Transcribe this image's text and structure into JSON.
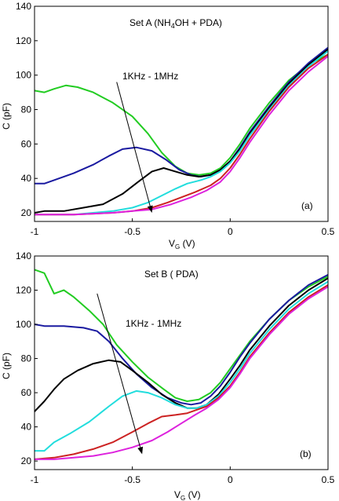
{
  "chart_data": [
    {
      "type": "line",
      "title": "Set A (NH4OH + PDA)",
      "title_parts": {
        "pre": "Set A (NH",
        "sub": "4",
        "post": "OH + PDA)"
      },
      "panel_label": "(a)",
      "annotation": "1KHz - 1MHz",
      "arrow": {
        "from": [
          -0.58,
          96
        ],
        "to": [
          -0.4,
          20
        ]
      },
      "xlabel": {
        "main": "V",
        "sub": "G",
        "unit": " (V)"
      },
      "ylabel": "C (pF)",
      "xlim": [
        -1,
        0.5
      ],
      "ylim": [
        15,
        140
      ],
      "xticks": [
        -1,
        -0.5,
        0,
        0.5
      ],
      "xtick_labels": [
        "-1",
        "-0.5",
        "0",
        "0.5"
      ],
      "yticks": [
        20,
        40,
        60,
        80,
        100,
        120,
        140
      ],
      "ytick_labels": [
        "20",
        "40",
        "60",
        "80",
        "100",
        "120",
        "140"
      ],
      "grid": false,
      "series": [
        {
          "color": "#22cc22",
          "points": [
            [
              -1,
              91
            ],
            [
              -0.95,
              90
            ],
            [
              -0.9,
              92
            ],
            [
              -0.84,
              94
            ],
            [
              -0.78,
              93
            ],
            [
              -0.7,
              90
            ],
            [
              -0.6,
              84
            ],
            [
              -0.5,
              76
            ],
            [
              -0.42,
              66
            ],
            [
              -0.35,
              55
            ],
            [
              -0.28,
              47
            ],
            [
              -0.22,
              43
            ],
            [
              -0.16,
              42
            ],
            [
              -0.1,
              43
            ],
            [
              -0.05,
              46
            ],
            [
              0,
              52
            ],
            [
              0.05,
              60
            ],
            [
              0.1,
              69
            ],
            [
              0.2,
              84
            ],
            [
              0.3,
              97
            ],
            [
              0.4,
              106
            ],
            [
              0.5,
              112
            ]
          ]
        },
        {
          "color": "#1a1aa0",
          "points": [
            [
              -1,
              37
            ],
            [
              -0.95,
              37
            ],
            [
              -0.9,
              39
            ],
            [
              -0.8,
              43
            ],
            [
              -0.7,
              48
            ],
            [
              -0.62,
              53
            ],
            [
              -0.55,
              57
            ],
            [
              -0.48,
              58
            ],
            [
              -0.4,
              56
            ],
            [
              -0.33,
              51
            ],
            [
              -0.26,
              45
            ],
            [
              -0.2,
              42
            ],
            [
              -0.15,
              41
            ],
            [
              -0.1,
              42
            ],
            [
              -0.05,
              45
            ],
            [
              0,
              50
            ],
            [
              0.05,
              58
            ],
            [
              0.1,
              67
            ],
            [
              0.2,
              82
            ],
            [
              0.3,
              96
            ],
            [
              0.4,
              107
            ],
            [
              0.5,
              116
            ]
          ]
        },
        {
          "color": "#000000",
          "points": [
            [
              -1,
              20
            ],
            [
              -0.95,
              21
            ],
            [
              -0.85,
              21
            ],
            [
              -0.75,
              23
            ],
            [
              -0.65,
              25
            ],
            [
              -0.55,
              31
            ],
            [
              -0.47,
              38
            ],
            [
              -0.4,
              44
            ],
            [
              -0.34,
              46
            ],
            [
              -0.28,
              44
            ],
            [
              -0.22,
              42
            ],
            [
              -0.16,
              41
            ],
            [
              -0.1,
              42
            ],
            [
              -0.05,
              45
            ],
            [
              0,
              50
            ],
            [
              0.05,
              57
            ],
            [
              0.1,
              66
            ],
            [
              0.2,
              81
            ],
            [
              0.3,
              95
            ],
            [
              0.4,
              106
            ],
            [
              0.5,
              115
            ]
          ]
        },
        {
          "color": "#22dddd",
          "points": [
            [
              -1,
              19
            ],
            [
              -0.9,
              19
            ],
            [
              -0.8,
              19
            ],
            [
              -0.7,
              20
            ],
            [
              -0.6,
              21
            ],
            [
              -0.5,
              23
            ],
            [
              -0.42,
              26
            ],
            [
              -0.35,
              30
            ],
            [
              -0.28,
              34
            ],
            [
              -0.22,
              37
            ],
            [
              -0.15,
              39
            ],
            [
              -0.1,
              41
            ],
            [
              -0.05,
              44
            ],
            [
              0,
              49
            ],
            [
              0.05,
              56
            ],
            [
              0.1,
              65
            ],
            [
              0.2,
              80
            ],
            [
              0.3,
              94
            ],
            [
              0.4,
              105
            ],
            [
              0.5,
              114
            ]
          ]
        },
        {
          "color": "#cc2222",
          "points": [
            [
              -1,
              19
            ],
            [
              -0.8,
              19
            ],
            [
              -0.6,
              20
            ],
            [
              -0.5,
              21
            ],
            [
              -0.4,
              23
            ],
            [
              -0.32,
              26
            ],
            [
              -0.25,
              29
            ],
            [
              -0.18,
              32
            ],
            [
              -0.1,
              36
            ],
            [
              -0.05,
              40
            ],
            [
              0,
              46
            ],
            [
              0.05,
              54
            ],
            [
              0.1,
              63
            ],
            [
              0.2,
              79
            ],
            [
              0.3,
              93
            ],
            [
              0.4,
              104
            ],
            [
              0.5,
              112
            ]
          ]
        },
        {
          "color": "#dd22dd",
          "points": [
            [
              -1,
              19
            ],
            [
              -0.8,
              19
            ],
            [
              -0.6,
              20
            ],
            [
              -0.5,
              21
            ],
            [
              -0.4,
              22
            ],
            [
              -0.3,
              25
            ],
            [
              -0.2,
              29
            ],
            [
              -0.12,
              33
            ],
            [
              -0.05,
              38
            ],
            [
              0,
              44
            ],
            [
              0.05,
              52
            ],
            [
              0.1,
              61
            ],
            [
              0.2,
              77
            ],
            [
              0.3,
              91
            ],
            [
              0.4,
              102
            ],
            [
              0.5,
              111
            ]
          ]
        }
      ]
    },
    {
      "type": "line",
      "title": "Set B  ( PDA)",
      "panel_label": "(b)",
      "annotation": "1KHz - 1MHz",
      "arrow": {
        "from": [
          -0.68,
          118
        ],
        "to": [
          -0.45,
          24
        ]
      },
      "xlabel": {
        "main": "V",
        "sub": "G",
        "unit": " (V)"
      },
      "ylabel": "C (pF)",
      "xlim": [
        -1,
        0.5
      ],
      "ylim": [
        15,
        140
      ],
      "xticks": [
        -1,
        -0.5,
        0,
        0.5
      ],
      "xtick_labels": [
        "-1",
        "-0.5",
        "0",
        "0.5"
      ],
      "yticks": [
        20,
        40,
        60,
        80,
        100,
        120,
        140
      ],
      "ytick_labels": [
        "20",
        "40",
        "60",
        "80",
        "100",
        "120",
        "140"
      ],
      "grid": false,
      "series": [
        {
          "color": "#22cc22",
          "points": [
            [
              -1,
              132
            ],
            [
              -0.95,
              130
            ],
            [
              -0.9,
              118
            ],
            [
              -0.85,
              120
            ],
            [
              -0.8,
              116
            ],
            [
              -0.72,
              108
            ],
            [
              -0.65,
              100
            ],
            [
              -0.58,
              88
            ],
            [
              -0.5,
              78
            ],
            [
              -0.42,
              69
            ],
            [
              -0.34,
              62
            ],
            [
              -0.28,
              57
            ],
            [
              -0.22,
              55
            ],
            [
              -0.16,
              56
            ],
            [
              -0.1,
              60
            ],
            [
              -0.05,
              66
            ],
            [
              0,
              74
            ],
            [
              0.05,
              82
            ],
            [
              0.1,
              90
            ],
            [
              0.2,
              103
            ],
            [
              0.3,
              114
            ],
            [
              0.4,
              122
            ],
            [
              0.5,
              128
            ]
          ]
        },
        {
          "color": "#1a1aa0",
          "points": [
            [
              -1,
              100
            ],
            [
              -0.95,
              99
            ],
            [
              -0.85,
              99
            ],
            [
              -0.75,
              98
            ],
            [
              -0.68,
              96
            ],
            [
              -0.62,
              90
            ],
            [
              -0.55,
              80
            ],
            [
              -0.48,
              71
            ],
            [
              -0.4,
              63
            ],
            [
              -0.32,
              57
            ],
            [
              -0.25,
              54
            ],
            [
              -0.2,
              53
            ],
            [
              -0.15,
              54
            ],
            [
              -0.1,
              58
            ],
            [
              -0.05,
              64
            ],
            [
              0,
              72
            ],
            [
              0.05,
              81
            ],
            [
              0.1,
              89
            ],
            [
              0.2,
              103
            ],
            [
              0.3,
              114
            ],
            [
              0.4,
              123
            ],
            [
              0.5,
              129
            ]
          ]
        },
        {
          "color": "#000000",
          "points": [
            [
              -1,
              49
            ],
            [
              -0.95,
              55
            ],
            [
              -0.9,
              62
            ],
            [
              -0.85,
              68
            ],
            [
              -0.78,
              73
            ],
            [
              -0.7,
              77
            ],
            [
              -0.62,
              79
            ],
            [
              -0.56,
              78
            ],
            [
              -0.5,
              73
            ],
            [
              -0.42,
              66
            ],
            [
              -0.35,
              59
            ],
            [
              -0.28,
              54
            ],
            [
              -0.22,
              51
            ],
            [
              -0.17,
              51
            ],
            [
              -0.12,
              53
            ],
            [
              -0.06,
              59
            ],
            [
              0,
              68
            ],
            [
              0.05,
              76
            ],
            [
              0.1,
              85
            ],
            [
              0.2,
              99
            ],
            [
              0.3,
              111
            ],
            [
              0.4,
              120
            ],
            [
              0.5,
              127
            ]
          ]
        },
        {
          "color": "#22dddd",
          "points": [
            [
              -1,
              26
            ],
            [
              -0.95,
              26
            ],
            [
              -0.9,
              31
            ],
            [
              -0.82,
              36
            ],
            [
              -0.72,
              43
            ],
            [
              -0.62,
              52
            ],
            [
              -0.55,
              58
            ],
            [
              -0.48,
              61
            ],
            [
              -0.42,
              60
            ],
            [
              -0.35,
              57
            ],
            [
              -0.28,
              53
            ],
            [
              -0.22,
              51
            ],
            [
              -0.17,
              51
            ],
            [
              -0.12,
              53
            ],
            [
              -0.06,
              58
            ],
            [
              0,
              66
            ],
            [
              0.05,
              74
            ],
            [
              0.1,
              83
            ],
            [
              0.2,
              97
            ],
            [
              0.3,
              109
            ],
            [
              0.4,
              118
            ],
            [
              0.5,
              125
            ]
          ]
        },
        {
          "color": "#cc2222",
          "points": [
            [
              -1,
              21
            ],
            [
              -0.9,
              22
            ],
            [
              -0.8,
              24
            ],
            [
              -0.7,
              27
            ],
            [
              -0.6,
              31
            ],
            [
              -0.5,
              37
            ],
            [
              -0.42,
              42
            ],
            [
              -0.35,
              46
            ],
            [
              -0.28,
              47
            ],
            [
              -0.22,
              48
            ],
            [
              -0.17,
              50
            ],
            [
              -0.12,
              52
            ],
            [
              -0.06,
              57
            ],
            [
              0,
              64
            ],
            [
              0.05,
              72
            ],
            [
              0.1,
              81
            ],
            [
              0.2,
              95
            ],
            [
              0.3,
              107
            ],
            [
              0.4,
              116
            ],
            [
              0.5,
              123
            ]
          ]
        },
        {
          "color": "#dd22dd",
          "points": [
            [
              -1,
              21
            ],
            [
              -0.9,
              21
            ],
            [
              -0.8,
              22
            ],
            [
              -0.7,
              23
            ],
            [
              -0.6,
              25
            ],
            [
              -0.5,
              28
            ],
            [
              -0.4,
              32
            ],
            [
              -0.32,
              37
            ],
            [
              -0.25,
              42
            ],
            [
              -0.18,
              47
            ],
            [
              -0.12,
              51
            ],
            [
              -0.06,
              56
            ],
            [
              0,
              63
            ],
            [
              0.05,
              71
            ],
            [
              0.1,
              80
            ],
            [
              0.2,
              94
            ],
            [
              0.3,
              106
            ],
            [
              0.4,
              115
            ],
            [
              0.5,
              122
            ]
          ]
        }
      ]
    }
  ]
}
